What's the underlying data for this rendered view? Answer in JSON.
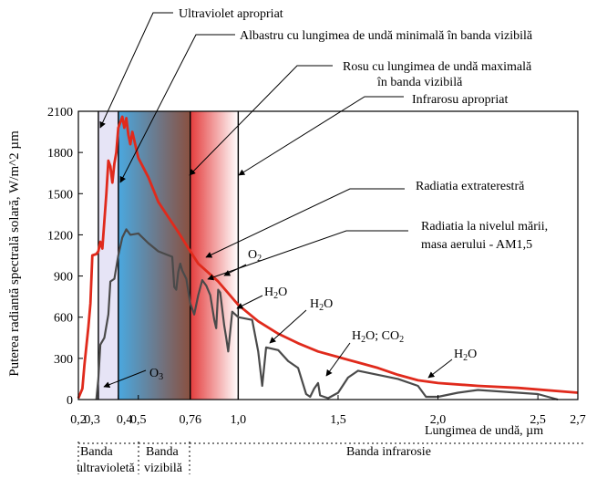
{
  "chart_data": {
    "type": "line",
    "xlabel": "Lungimea de undă, µm",
    "ylabel": "Puterea radiantă spectrală solară, W/m^2 µm",
    "xlim": [
      0.2,
      2.7
    ],
    "ylim": [
      0,
      2100
    ],
    "x_ticks": [
      {
        "v": 0.2,
        "label": "0,2"
      },
      {
        "v": 0.3,
        "label": "0,3"
      },
      {
        "v": 0.4,
        "label": "0,4"
      },
      {
        "v": 0.5,
        "label": "0,5"
      },
      {
        "v": 0.76,
        "label": "0,76"
      },
      {
        "v": 1.0,
        "label": "1,0"
      },
      {
        "v": 1.5,
        "label": "1,5"
      },
      {
        "v": 2.0,
        "label": "2,0"
      },
      {
        "v": 2.5,
        "label": "2,5"
      },
      {
        "v": 2.7,
        "label": "2,7"
      }
    ],
    "y_ticks": [
      {
        "v": 0,
        "label": "0"
      },
      {
        "v": 300,
        "label": "300"
      },
      {
        "v": 600,
        "label": "600"
      },
      {
        "v": 900,
        "label": "900"
      },
      {
        "v": 1200,
        "label": "1200"
      },
      {
        "v": 1500,
        "label": "1500"
      },
      {
        "v": 1800,
        "label": "1800"
      },
      {
        "v": 2100,
        "label": "2100"
      }
    ],
    "regions": [
      {
        "x0": 0.3,
        "x1": 0.4,
        "color": "#e6e4f6"
      },
      {
        "x0": 0.4,
        "x1": 0.76,
        "color_start": "#4aa8e0",
        "color_end": "#8a5040"
      },
      {
        "x0": 0.76,
        "x1": 1.0,
        "color_start": "#e43c3c",
        "color_end": "#ffffff"
      }
    ],
    "vlines": [
      0.3,
      0.4,
      0.76,
      1.0
    ],
    "series": [
      {
        "name": "Radiatia extraterestră",
        "color": "#e02a1c",
        "points": [
          [
            0.2,
            10
          ],
          [
            0.22,
            80
          ],
          [
            0.23,
            250
          ],
          [
            0.25,
            530
          ],
          [
            0.26,
            700
          ],
          [
            0.27,
            1050
          ],
          [
            0.29,
            1060
          ],
          [
            0.3,
            1080
          ],
          [
            0.31,
            1150
          ],
          [
            0.32,
            1100
          ],
          [
            0.33,
            1300
          ],
          [
            0.34,
            1500
          ],
          [
            0.35,
            1740
          ],
          [
            0.36,
            1700
          ],
          [
            0.37,
            1580
          ],
          [
            0.38,
            1720
          ],
          [
            0.39,
            1800
          ],
          [
            0.4,
            1980
          ],
          [
            0.42,
            2060
          ],
          [
            0.43,
            1980
          ],
          [
            0.44,
            2050
          ],
          [
            0.45,
            1930
          ],
          [
            0.46,
            1860
          ],
          [
            0.47,
            1950
          ],
          [
            0.5,
            1760
          ],
          [
            0.55,
            1620
          ],
          [
            0.6,
            1440
          ],
          [
            0.65,
            1330
          ],
          [
            0.7,
            1220
          ],
          [
            0.76,
            1080
          ],
          [
            0.8,
            990
          ],
          [
            0.9,
            860
          ],
          [
            1.0,
            690
          ],
          [
            1.1,
            570
          ],
          [
            1.2,
            480
          ],
          [
            1.3,
            410
          ],
          [
            1.4,
            350
          ],
          [
            1.5,
            310
          ],
          [
            1.6,
            270
          ],
          [
            1.7,
            230
          ],
          [
            1.8,
            180
          ],
          [
            1.9,
            140
          ],
          [
            2.0,
            120
          ],
          [
            2.2,
            100
          ],
          [
            2.4,
            85
          ],
          [
            2.7,
            50
          ]
        ]
      },
      {
        "name": "Radiatia la nivelul mării, masa aerului - AM1,5",
        "color": "#4a4a4a",
        "points": [
          [
            0.29,
            0
          ],
          [
            0.3,
            150
          ],
          [
            0.31,
            400
          ],
          [
            0.33,
            450
          ],
          [
            0.35,
            620
          ],
          [
            0.36,
            860
          ],
          [
            0.38,
            880
          ],
          [
            0.4,
            1050
          ],
          [
            0.42,
            1180
          ],
          [
            0.44,
            1240
          ],
          [
            0.46,
            1200
          ],
          [
            0.5,
            1210
          ],
          [
            0.55,
            1140
          ],
          [
            0.6,
            1080
          ],
          [
            0.67,
            1040
          ],
          [
            0.68,
            820
          ],
          [
            0.69,
            800
          ],
          [
            0.7,
            930
          ],
          [
            0.71,
            990
          ],
          [
            0.72,
            940
          ],
          [
            0.74,
            880
          ],
          [
            0.76,
            700
          ],
          [
            0.78,
            620
          ],
          [
            0.8,
            760
          ],
          [
            0.82,
            870
          ],
          [
            0.84,
            830
          ],
          [
            0.86,
            760
          ],
          [
            0.88,
            580
          ],
          [
            0.89,
            520
          ],
          [
            0.9,
            800
          ],
          [
            0.91,
            780
          ],
          [
            0.93,
            540
          ],
          [
            0.94,
            450
          ],
          [
            0.95,
            350
          ],
          [
            0.97,
            640
          ],
          [
            1.0,
            600
          ],
          [
            1.07,
            580
          ],
          [
            1.1,
            350
          ],
          [
            1.12,
            100
          ],
          [
            1.14,
            380
          ],
          [
            1.2,
            360
          ],
          [
            1.25,
            280
          ],
          [
            1.3,
            230
          ],
          [
            1.34,
            40
          ],
          [
            1.36,
            20
          ],
          [
            1.38,
            80
          ],
          [
            1.4,
            120
          ],
          [
            1.41,
            30
          ],
          [
            1.45,
            10
          ],
          [
            1.5,
            50
          ],
          [
            1.55,
            160
          ],
          [
            1.6,
            210
          ],
          [
            1.7,
            180
          ],
          [
            1.8,
            150
          ],
          [
            1.9,
            100
          ],
          [
            1.94,
            20
          ],
          [
            2.0,
            20
          ],
          [
            2.1,
            50
          ],
          [
            2.2,
            70
          ],
          [
            2.3,
            60
          ],
          [
            2.4,
            50
          ],
          [
            2.5,
            40
          ],
          [
            2.6,
            0
          ]
        ]
      }
    ],
    "annotations": [
      {
        "key": "uv_proximal",
        "text": "Ultraviolet apropriat"
      },
      {
        "key": "blue_min",
        "text": "Albastru cu lungimea de undă minimală în banda vizibilă"
      },
      {
        "key": "red_max_1",
        "text": "Rosu cu lungimea de undă maximală"
      },
      {
        "key": "red_max_2",
        "text": "în banda vizibilă"
      },
      {
        "key": "ir_proximal",
        "text": "Infrarosu  apropriat"
      },
      {
        "key": "extraterrestrial",
        "text": "Radiatia extraterestră"
      },
      {
        "key": "sea_level_1",
        "text": "Radiatia la nivelul mării,"
      },
      {
        "key": "sea_level_2",
        "text": "masa aerului - AM1,5"
      }
    ],
    "molecules": [
      {
        "key": "o2",
        "base": "O",
        "sub": "2"
      },
      {
        "key": "h2o_a",
        "base": "H",
        "sub": "2",
        "rest": "O"
      },
      {
        "key": "h2o_b",
        "base": "H",
        "sub": "2",
        "rest": "O"
      },
      {
        "key": "h2o_co2_a",
        "base": "H",
        "sub": "2",
        "rest": "O; CO"
      },
      {
        "key": "h2o_co2_b",
        "sub2": "2"
      },
      {
        "key": "h2o_c",
        "base": "H",
        "sub": "2",
        "rest": "O"
      },
      {
        "key": "o3",
        "base": "O",
        "sub": "3"
      }
    ],
    "bands": [
      {
        "key": "uv",
        "line1": "Banda",
        "line2": "ultravioletă"
      },
      {
        "key": "vis",
        "line1": "Banda",
        "line2": "vizibilă"
      },
      {
        "key": "ir",
        "line1": "Banda infrarosie",
        "line2": ""
      }
    ]
  }
}
